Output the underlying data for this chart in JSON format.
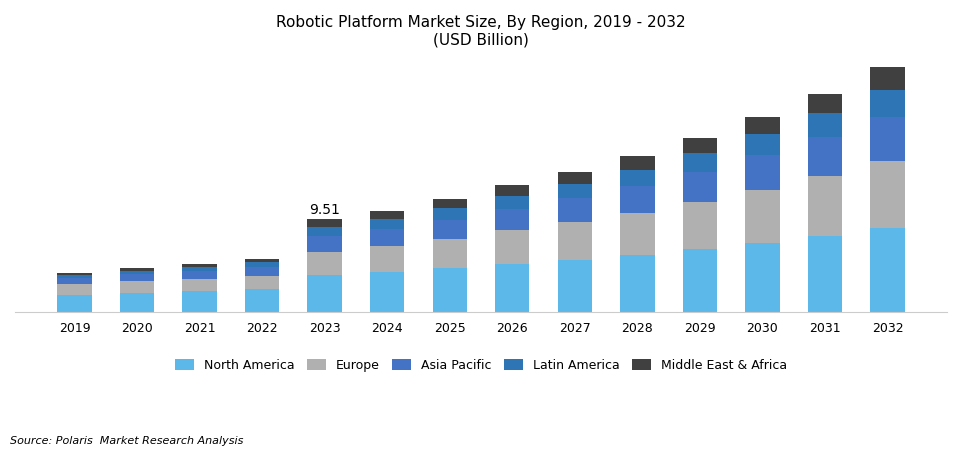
{
  "title_line1": "Robotic Platform Market Size, By Region, 2019 - 2032",
  "title_line2": "(USD Billion)",
  "years": [
    2019,
    2020,
    2021,
    2022,
    2023,
    2024,
    2025,
    2026,
    2027,
    2028,
    2029,
    2030,
    2031,
    2032
  ],
  "regions": [
    "North America",
    "Europe",
    "Asia Pacific",
    "Latin America",
    "Middle East & Africa"
  ],
  "colors": [
    "#5BB8E8",
    "#B0B0B0",
    "#4472C4",
    "#2E75B6",
    "#404040"
  ],
  "data": {
    "North America": [
      1.8,
      2.0,
      2.15,
      2.35,
      3.8,
      4.1,
      4.5,
      4.9,
      5.35,
      5.85,
      6.45,
      7.1,
      7.85,
      8.6
    ],
    "Europe": [
      1.05,
      1.15,
      1.25,
      1.4,
      2.4,
      2.65,
      3.0,
      3.5,
      3.85,
      4.3,
      4.85,
      5.45,
      6.1,
      6.9
    ],
    "Asia Pacific": [
      0.65,
      0.72,
      0.8,
      0.9,
      1.6,
      1.75,
      1.95,
      2.2,
      2.45,
      2.75,
      3.1,
      3.5,
      3.95,
      4.5
    ],
    "Latin America": [
      0.35,
      0.4,
      0.45,
      0.5,
      0.95,
      1.05,
      1.18,
      1.32,
      1.48,
      1.68,
      1.9,
      2.15,
      2.45,
      2.8
    ],
    "Middle East & Africa": [
      0.2,
      0.23,
      0.26,
      0.3,
      0.76,
      0.84,
      0.95,
      1.07,
      1.22,
      1.38,
      1.57,
      1.78,
      2.02,
      2.3
    ]
  },
  "annotation_year": 2023,
  "annotation_text": "9.51",
  "annotation_fontsize": 10,
  "source_text": "Source: Polaris  Market Research Analysis",
  "xlabel_fontsize": 9,
  "title_fontsize": 11,
  "legend_fontsize": 9,
  "bar_width": 0.55,
  "ylim_max": 26,
  "background_color": "#FFFFFF"
}
